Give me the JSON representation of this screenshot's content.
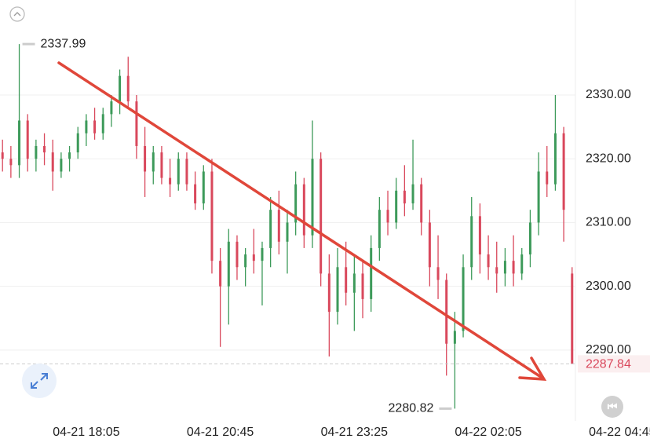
{
  "chart_data": {
    "type": "candlestick",
    "up_color": "#3d9a5a",
    "down_color": "#d9485c",
    "open": [
      2321,
      2320,
      2319,
      2326,
      2320,
      2322,
      2321,
      2318,
      2320,
      2321,
      2324,
      2326,
      2324,
      2327,
      2329,
      2333,
      2329,
      2322,
      2318,
      2321,
      2317,
      2316,
      2320,
      2316,
      2313,
      2318,
      2304,
      2300,
      2307,
      2303,
      2305,
      2304,
      2306,
      2312,
      2307,
      2310,
      2316,
      2308,
      2320,
      2302,
      2296,
      2303,
      2299,
      2302,
      2298,
      2306,
      2312,
      2310,
      2315,
      2313,
      2316,
      2310,
      2303,
      2301,
      2291,
      2293,
      2303,
      2311,
      2305,
      2303,
      2302,
      2304,
      2302,
      2305,
      2310,
      2318,
      2316,
      2324,
      2302
    ],
    "high": [
      2323,
      2322,
      2337.99,
      2327,
      2323,
      2324,
      2323,
      2321,
      2322,
      2325,
      2327,
      2328,
      2328,
      2330,
      2334,
      2336,
      2330,
      2325,
      2322,
      2322,
      2320,
      2321,
      2321,
      2318,
      2319,
      2320,
      2306,
      2309,
      2308,
      2306,
      2309,
      2307,
      2314,
      2315,
      2312,
      2318,
      2317,
      2326,
      2321,
      2305,
      2306,
      2307,
      2305,
      2304,
      2308,
      2314,
      2315,
      2317,
      2319,
      2323,
      2317,
      2312,
      2308,
      2302,
      2296,
      2305,
      2314,
      2313,
      2308,
      2307,
      2306,
      2308,
      2306,
      2312,
      2321,
      2322,
      2330,
      2325,
      2303
    ],
    "low": [
      2318,
      2317,
      2317,
      2318,
      2318,
      2319,
      2315,
      2317,
      2318,
      2320,
      2322,
      2323,
      2323,
      2325,
      2327,
      2328,
      2320,
      2314,
      2316,
      2316,
      2314,
      2315,
      2315,
      2312,
      2312,
      2302,
      2290.5,
      2294,
      2301,
      2300,
      2302,
      2297,
      2303,
      2305,
      2302,
      2308,
      2306,
      2306,
      2300,
      2289,
      2294,
      2297,
      2293,
      2295,
      2296,
      2304,
      2308,
      2309,
      2311,
      2312,
      2308,
      2300,
      2298,
      2286,
      2280.82,
      2292,
      2301,
      2302,
      2301,
      2299,
      2300,
      2300,
      2301,
      2303,
      2308,
      2314,
      2315,
      2307,
      2287.84
    ],
    "close": [
      2320,
      2319,
      2326,
      2320,
      2322,
      2321,
      2318,
      2320,
      2321,
      2324,
      2326,
      2324,
      2327,
      2329,
      2333,
      2329,
      2322,
      2318,
      2321,
      2317,
      2316,
      2320,
      2316,
      2313,
      2318,
      2304,
      2300,
      2307,
      2303,
      2305,
      2304,
      2306,
      2312,
      2307,
      2310,
      2316,
      2308,
      2320,
      2302,
      2296,
      2303,
      2299,
      2302,
      2298,
      2306,
      2312,
      2310,
      2315,
      2313,
      2316,
      2310,
      2303,
      2301,
      2291,
      2293,
      2303,
      2311,
      2305,
      2303,
      2302,
      2304,
      2302,
      2305,
      2310,
      2318,
      2316,
      2324,
      2312,
      2287.84
    ],
    "xlim": [
      -0.3,
      77.3
    ],
    "xticks": [
      {
        "value": 10,
        "label": "04-21 18:05"
      },
      {
        "value": 26,
        "label": "04-21 20:45"
      },
      {
        "value": 42,
        "label": "04-21 23:25"
      },
      {
        "value": 58,
        "label": "04-22 02:05"
      },
      {
        "value": 74,
        "label": "04-22 04:45"
      }
    ],
    "ylim": [
      2278.9,
      2344.9
    ],
    "yticks": [
      {
        "value": 2290,
        "label": "2290.00"
      },
      {
        "value": 2300,
        "label": "2300.00"
      },
      {
        "value": 2310,
        "label": "2310.00"
      },
      {
        "value": 2320,
        "label": "2320.00"
      },
      {
        "value": 2330,
        "label": "2330.00"
      }
    ],
    "grid": true
  }
}
